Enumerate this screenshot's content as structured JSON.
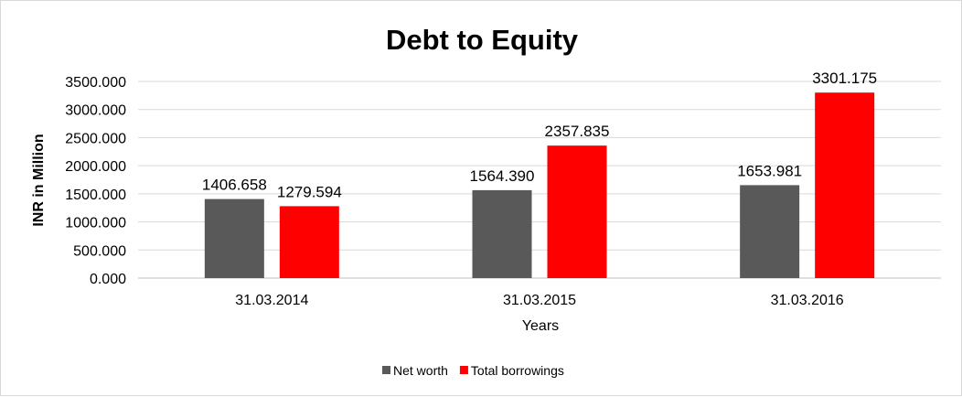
{
  "chart_data": {
    "type": "bar",
    "title": "Debt to Equity",
    "xlabel": "Years",
    "ylabel": "INR in Million",
    "categories": [
      "31.03.2014",
      "31.03.2015",
      "31.03.2016"
    ],
    "series": [
      {
        "name": "Net worth",
        "color": "#595959",
        "values": [
          1406.658,
          1564.39,
          1653.981
        ],
        "labels": [
          "1406.658",
          "1564.390",
          "1653.981"
        ]
      },
      {
        "name": "Total borrowings",
        "color": "#ff0000",
        "values": [
          1279.594,
          2357.835,
          3301.175
        ],
        "labels": [
          "1279.594",
          "2357.835",
          "3301.175"
        ]
      }
    ],
    "ylim": [
      0,
      3500
    ],
    "yticks": [
      "0.000",
      "500.000",
      "1000.000",
      "1500.000",
      "2000.000",
      "2500.000",
      "3000.000",
      "3500.000"
    ],
    "grid": true,
    "legend": "bottom"
  }
}
